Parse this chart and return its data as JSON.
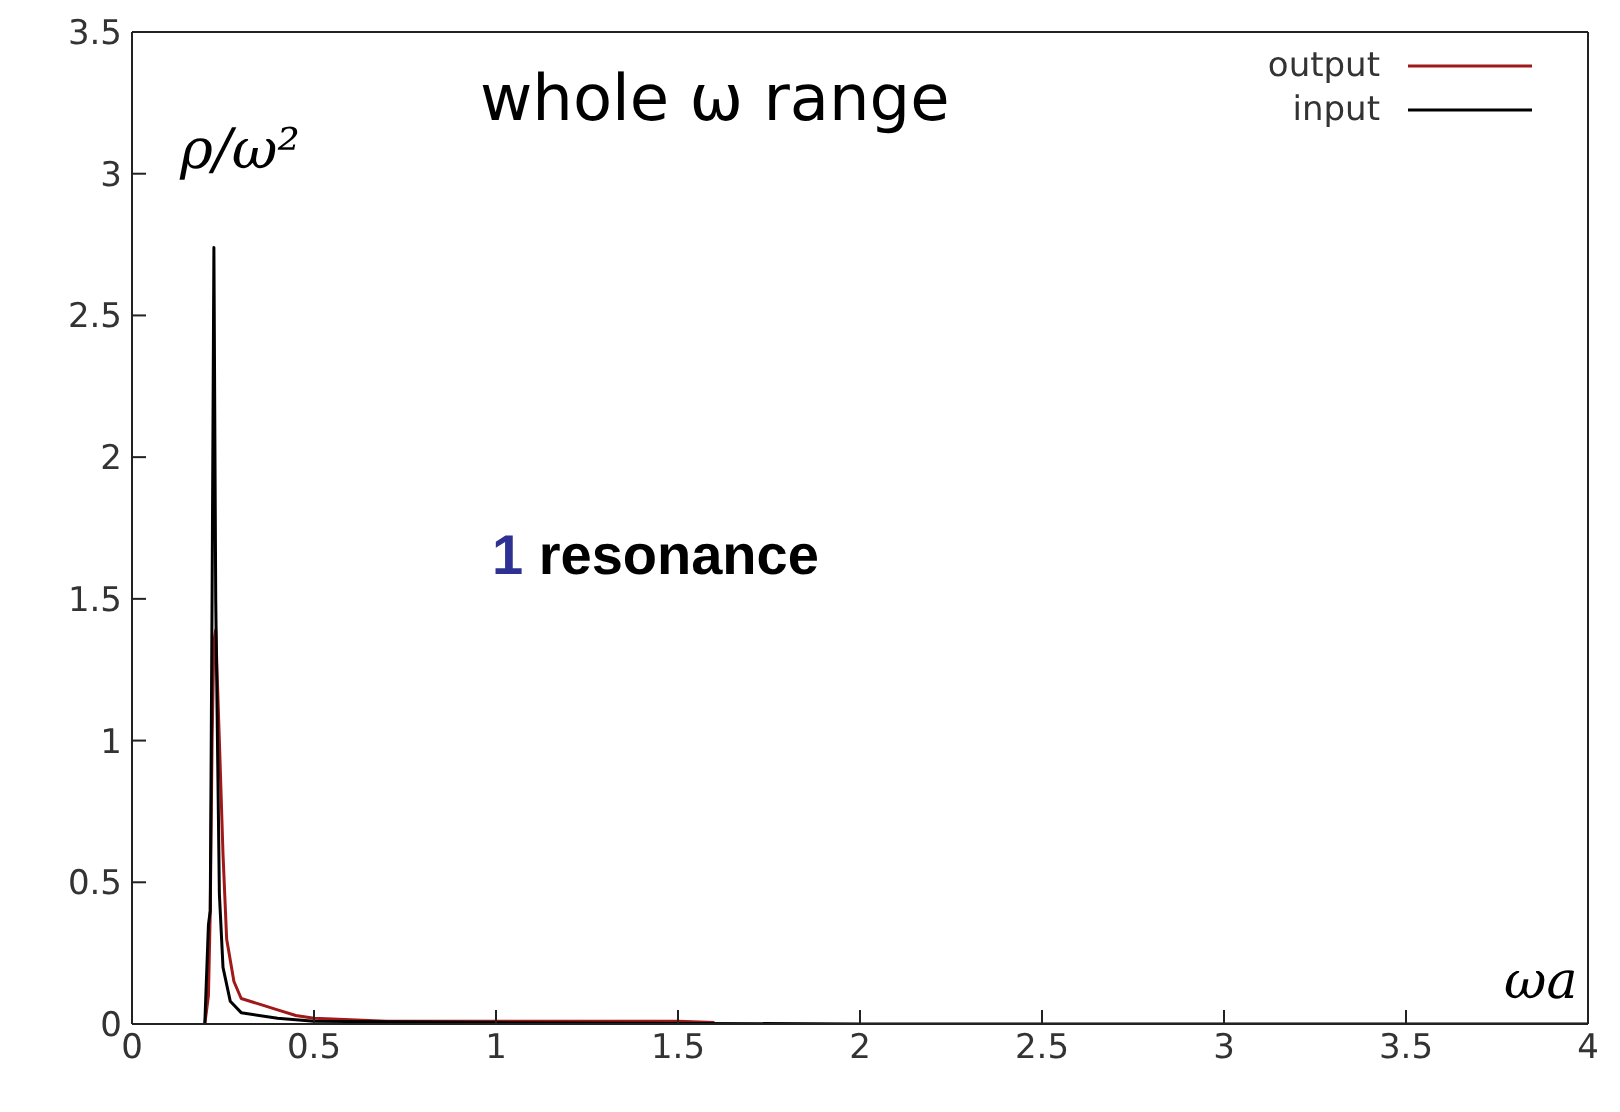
{
  "chart_data": {
    "type": "line",
    "title": "whole ω range",
    "xlabel": "ωa",
    "ylabel": "ρ/ω²",
    "annotations": [
      "1 resonance"
    ],
    "xlim": [
      0,
      4
    ],
    "xticks": [
      0,
      0.5,
      1,
      1.5,
      2,
      2.5,
      3,
      3.5,
      4
    ],
    "ylim": [
      0,
      3.5
    ],
    "yticks": [
      0,
      0.5,
      1,
      1.5,
      2,
      2.5,
      3,
      3.5
    ],
    "legend": "top right",
    "marker": "none",
    "line_style": "solid",
    "series": [
      {
        "name": "output",
        "color": "#a01818",
        "x": [
          0.2,
          0.21,
          0.215,
          0.22,
          0.225,
          0.23,
          0.24,
          0.25,
          0.26,
          0.28,
          0.3,
          0.35,
          0.4,
          0.45,
          0.5,
          0.6,
          0.7,
          1,
          1.5,
          1.6
        ],
        "values": [
          0,
          0.1,
          0.4,
          1.0,
          1.35,
          1.39,
          1.0,
          0.6,
          0.3,
          0.15,
          0.09,
          0.07,
          0.05,
          0.03,
          0.02,
          0.015,
          0.01,
          0.01,
          0.01,
          0.005
        ]
      },
      {
        "name": "input",
        "color": "#000000",
        "x": [
          0.2,
          0.21,
          0.215,
          0.22,
          0.225,
          0.23,
          0.24,
          0.25,
          0.27,
          0.3,
          0.4,
          0.5,
          1,
          2,
          4
        ],
        "values": [
          0,
          0.35,
          0.4,
          1.5,
          2.74,
          1.5,
          0.46,
          0.2,
          0.08,
          0.04,
          0.02,
          0.01,
          0.005,
          0,
          0
        ]
      }
    ]
  }
}
